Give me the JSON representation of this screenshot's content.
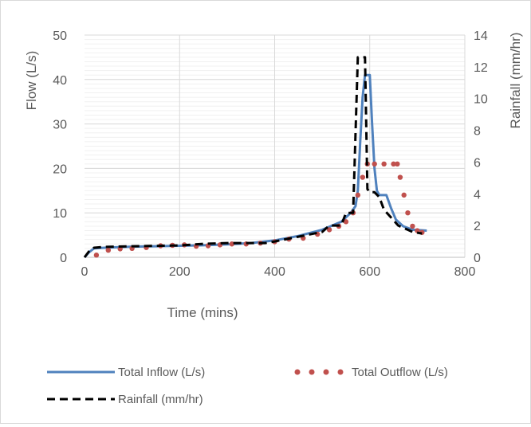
{
  "chart_data": {
    "type": "line",
    "title": "",
    "xlabel": "Time (mins)",
    "ylabel_left": "Flow (L/s)",
    "ylabel_right": "Rainfall (mm/hr)",
    "xlim": [
      0,
      800
    ],
    "ylim_left": [
      0,
      50
    ],
    "ylim_right": [
      0,
      14
    ],
    "x_ticks": [
      0,
      200,
      400,
      600,
      800
    ],
    "y_left_ticks": [
      0,
      10,
      20,
      30,
      40,
      50
    ],
    "y_right_ticks": [
      0,
      2,
      4,
      6,
      8,
      10,
      12,
      14
    ],
    "grid": true,
    "legend_position": "bottom",
    "series": [
      {
        "name": "Total Inflow (L/s)",
        "axis": "left",
        "style": "solid",
        "color": "#4f81bd",
        "x": [
          0,
          10,
          20,
          50,
          100,
          150,
          200,
          250,
          300,
          350,
          400,
          450,
          500,
          540,
          560,
          570,
          575,
          580,
          585,
          590,
          600,
          605,
          610,
          615,
          620,
          625,
          635,
          645,
          655,
          670,
          690,
          720
        ],
        "y": [
          0,
          1.2,
          2.0,
          2.2,
          2.4,
          2.5,
          2.6,
          2.7,
          2.9,
          3.2,
          3.8,
          4.8,
          6.2,
          8.0,
          10.0,
          11.5,
          15.0,
          26.0,
          36.0,
          41.0,
          41.0,
          30.0,
          20.0,
          15.0,
          14.0,
          14.0,
          14.0,
          11.0,
          8.5,
          7.0,
          6.2,
          6.0
        ]
      },
      {
        "name": "Total Outflow (L/s)",
        "axis": "left",
        "style": "dotted",
        "color": "#c0504d",
        "x": [
          25,
          50,
          75,
          100,
          130,
          160,
          185,
          210,
          235,
          260,
          285,
          310,
          340,
          370,
          400,
          430,
          460,
          490,
          515,
          535,
          550,
          565,
          575,
          585,
          595,
          610,
          630,
          650,
          658,
          664,
          672,
          680,
          690,
          700,
          710
        ],
        "y": [
          0.5,
          1.6,
          1.9,
          2.0,
          2.2,
          2.6,
          2.7,
          2.8,
          2.5,
          2.6,
          2.8,
          3.0,
          3.0,
          3.2,
          3.5,
          4.1,
          4.3,
          5.2,
          6.2,
          7.0,
          8.0,
          10.0,
          14.0,
          18.0,
          21.0,
          21.0,
          21.0,
          21.0,
          21.0,
          18.0,
          14.0,
          10.0,
          7.0,
          6.0,
          5.6
        ]
      },
      {
        "name": "Rainfall (mm/hr)",
        "axis": "right",
        "style": "dashed",
        "color": "#000000",
        "x": [
          0,
          10,
          20,
          40,
          100,
          200,
          250,
          300,
          350,
          380,
          400,
          450,
          500,
          515,
          540,
          550,
          565,
          575,
          580,
          590,
          595,
          600,
          610,
          620,
          630,
          660,
          690,
          710
        ],
        "y": [
          0,
          0.4,
          0.6,
          0.65,
          0.7,
          0.75,
          0.85,
          0.9,
          0.9,
          0.9,
          1.0,
          1.3,
          1.6,
          2.0,
          2.0,
          2.8,
          2.8,
          12.6,
          12.6,
          12.6,
          4.3,
          4.1,
          4.1,
          3.8,
          3.0,
          2.0,
          1.6,
          1.5
        ]
      }
    ]
  }
}
